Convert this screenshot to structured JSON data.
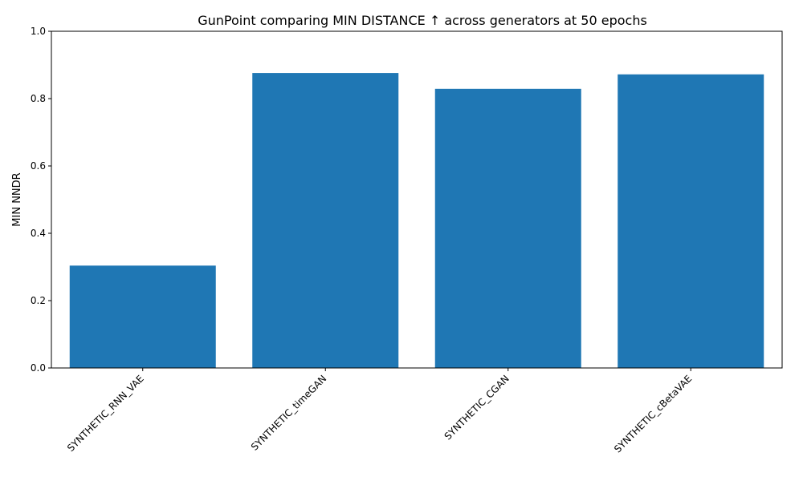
{
  "chart_data": {
    "type": "bar",
    "title": "GunPoint comparing MIN DISTANCE ↑  across generators at 50 epochs",
    "xlabel": "",
    "ylabel": "MIN NNDR",
    "categories": [
      "SYNTHETIC_RNN_VAE",
      "SYNTHETIC_timeGAN",
      "SYNTHETIC_CGAN",
      "SYNTHETIC_cBetaVAE"
    ],
    "values": [
      0.304,
      0.876,
      0.829,
      0.872
    ],
    "ylim": [
      0,
      1.0
    ],
    "yticks": [
      "0.0",
      "0.2",
      "0.4",
      "0.6",
      "0.8",
      "1.0"
    ],
    "bar_color": "#1f77b4",
    "grid": false,
    "legend": "none"
  }
}
